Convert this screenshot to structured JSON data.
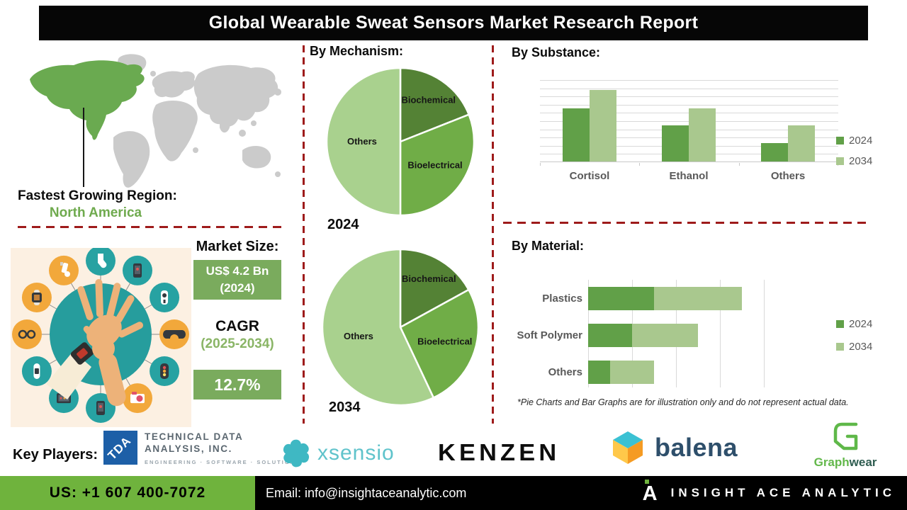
{
  "title": "Global Wearable Sweat Sensors Market Research Report",
  "headings": {
    "mechanism": "By Mechanism:",
    "substance": "By Substance:",
    "material": "By Material:"
  },
  "region": {
    "label": "Fastest Growing Region:",
    "value": "North America"
  },
  "market_size": {
    "label": "Market Size:",
    "value": "US$ 4.2 Bn",
    "year": "(2024)"
  },
  "cagr": {
    "label": "CAGR",
    "period": "(2025-2034)",
    "value": "12.7%"
  },
  "footnote": "*Pie Charts and Bar Graphs are for illustration only and do not represent actual data.",
  "key_players": {
    "label": "Key Players:",
    "players": [
      {
        "name": "Technical Data Analysis, Inc.",
        "monogram": "TDA",
        "lines": [
          "TECHNICAL DATA",
          "ANALYSIS, INC."
        ],
        "tagline": "ENGINEERING · SOFTWARE · SOLUTIONS"
      },
      {
        "name": "Xsensio",
        "wordmark": "xsensio"
      },
      {
        "name": "Kenzen",
        "wordmark": "KENZEN"
      },
      {
        "name": "Balena",
        "wordmark": "balena"
      },
      {
        "name": "Graphwear",
        "wordmark_primary": "Graph",
        "wordmark_secondary": "wear"
      }
    ]
  },
  "footer": {
    "phone": "US: +1 607 400-7072",
    "email": "Email: info@insightaceanalytic.com",
    "brand": "INSIGHT ACE ANALYTIC",
    "logo_letter": "A"
  },
  "illustration": {
    "satellite_icons": [
      "sock-icon",
      "heart-monitor-phone-icon",
      "body-meter-icon",
      "vr-goggles-icon",
      "fitness-tracker-icon",
      "camera-icon",
      "smartphone-icon",
      "tablet-icon",
      "wristband-icon",
      "smart-glasses-icon",
      "smartwatch-icon",
      "inhaler-icon"
    ]
  },
  "colors": {
    "dark_green": "#548235",
    "accent_green": "#70ad47",
    "light_green": "#a9d18e",
    "bar_2024": "#61a048",
    "bar_2034": "#a9c88e",
    "box_green": "#7aab5d",
    "footer_green": "#6fb33d",
    "dash_red": "#9e1b1b",
    "na_green": "#6aaa50",
    "map_gray": "#cbcbcb"
  },
  "chart_data": [
    {
      "type": "pie",
      "group": "By Mechanism",
      "year": "2024",
      "labels": [
        "Biochemical",
        "Bioelectrical",
        "Others"
      ],
      "values": [
        19,
        31,
        50
      ],
      "colors": [
        "#548235",
        "#70ad47",
        "#a9d18e"
      ]
    },
    {
      "type": "pie",
      "group": "By Mechanism",
      "year": "2034",
      "labels": [
        "Biochemical",
        "Bioelectrical",
        "Others"
      ],
      "values": [
        17,
        26,
        57
      ],
      "colors": [
        "#548235",
        "#70ad47",
        "#a9d18e"
      ]
    },
    {
      "type": "bar",
      "group": "By Substance",
      "categories": [
        "Cortisol",
        "Ethanol",
        "Others"
      ],
      "series": [
        {
          "name": "2024",
          "values": [
            65,
            44,
            22
          ],
          "color": "#61a048"
        },
        {
          "name": "2034",
          "values": [
            87,
            65,
            44
          ],
          "color": "#a9c88e"
        }
      ],
      "ylim": [
        0,
        100
      ],
      "grid": true,
      "legend_position": "right"
    },
    {
      "type": "stacked-bar-horizontal",
      "group": "By Material",
      "categories": [
        "Plastics",
        "Soft Polymer",
        "Others"
      ],
      "series": [
        {
          "name": "2024",
          "values": [
            1.5,
            1.0,
            0.5
          ],
          "color": "#61a048"
        },
        {
          "name": "2034",
          "values": [
            2.0,
            1.5,
            1.0
          ],
          "color": "#a9c88e"
        }
      ],
      "xlim": [
        0,
        4
      ],
      "grid": true,
      "legend_position": "right"
    }
  ]
}
